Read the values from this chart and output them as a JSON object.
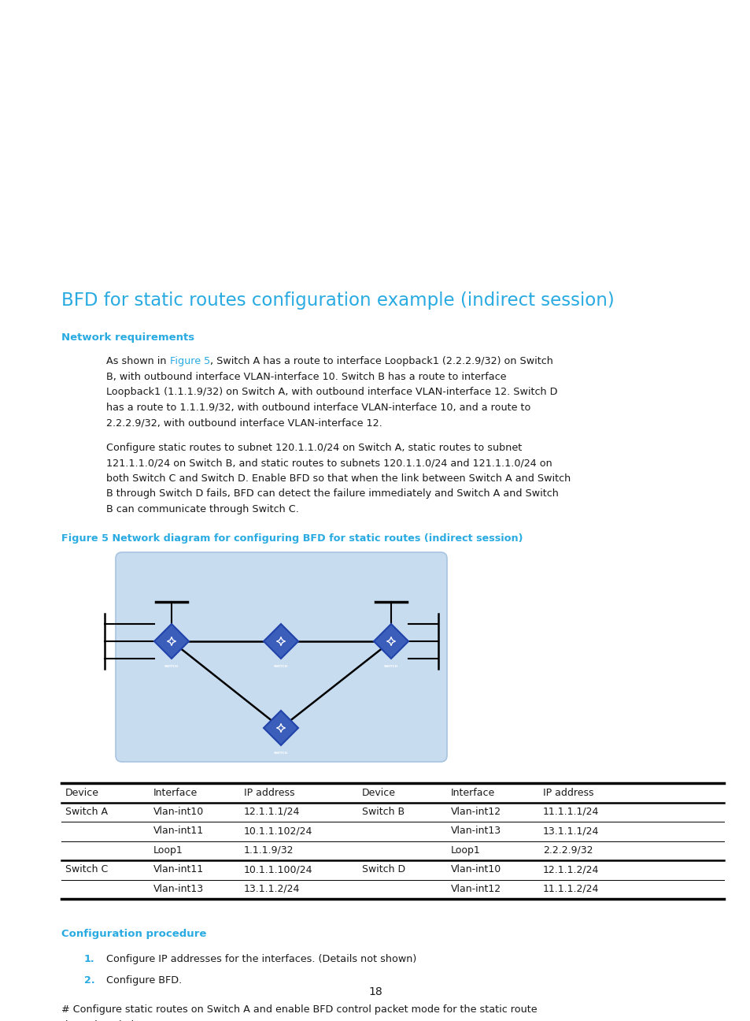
{
  "title": "BFD for static routes configuration example (indirect session)",
  "title_color": "#29ABE2",
  "section1_heading": "Network requirements",
  "section1_color": "#29ABE2",
  "body_color": "#1a1a1a",
  "body_fontsize": 9.2,
  "p1_before": "As shown in ",
  "p1_fig": "Figure 5",
  "p1_after": ", Switch A has a route to interface Loopback1 (2.2.2.9/32) on Switch B, with outbound interface VLAN-interface 10. Switch B has a route to interface Loopback1 (1.1.1.9/32) on Switch A, with outbound interface VLAN-interface 12. Switch D has a route to 1.1.1.9/32, with outbound interface VLAN-interface 10, and a route to 2.2.2.9/32, with outbound interface VLAN-interface 12.",
  "paragraph2": "Configure static routes to subnet 120.1.1.0/24 on Switch A, static routes to subnet 121.1.1.0/24 on Switch B, and static routes to subnets 120.1.1.0/24 and 121.1.1.0/24 on both Switch C and Switch D. Enable BFD so that when the link between Switch A and Switch B through Switch D fails, BFD can detect the failure immediately and Switch A and Switch B can communicate through Switch C.",
  "figure_caption": "Figure 5 Network diagram for configuring BFD for static routes (indirect session)",
  "figure_caption_color": "#29ABE2",
  "section2_heading": "Configuration procedure",
  "section2_color": "#29ABE2",
  "step1_num": "1.",
  "step1_num_color": "#29ABE2",
  "step1_text": "Configure IP addresses for the interfaces. (Details not shown)",
  "step2_num": "2.",
  "step2_num_color": "#29ABE2",
  "step2_text": "Configure BFD.",
  "final_text": "# Configure static routes on Switch A and enable BFD control packet mode for the static route through Switch D.",
  "page_number": "18",
  "table_headers": [
    "Device",
    "Interface",
    "IP address",
    "Device",
    "Interface",
    "IP address"
  ],
  "table_data": [
    [
      "Switch A",
      "Vlan-int10",
      "12.1.1.1/24",
      "Switch B",
      "Vlan-int12",
      "11.1.1.1/24"
    ],
    [
      "",
      "Vlan-int11",
      "10.1.1.102/24",
      "",
      "Vlan-int13",
      "13.1.1.1/24"
    ],
    [
      "",
      "Loop1",
      "1.1.1.9/32",
      "",
      "Loop1",
      "2.2.2.9/32"
    ],
    [
      "Switch C",
      "Vlan-int11",
      "10.1.1.100/24",
      "Switch D",
      "Vlan-int10",
      "12.1.1.2/24"
    ],
    [
      "",
      "Vlan-int13",
      "13.1.1.2/24",
      "",
      "Vlan-int12",
      "11.1.1.2/24"
    ]
  ],
  "bg_color": "#ffffff",
  "fig_ref_color": "#29ABE2",
  "switch_fill": "#3B5EBB",
  "switch_edge": "#2244AA",
  "diag_bg": "#C8DCF0",
  "diag_edge": "#A8C4E0"
}
